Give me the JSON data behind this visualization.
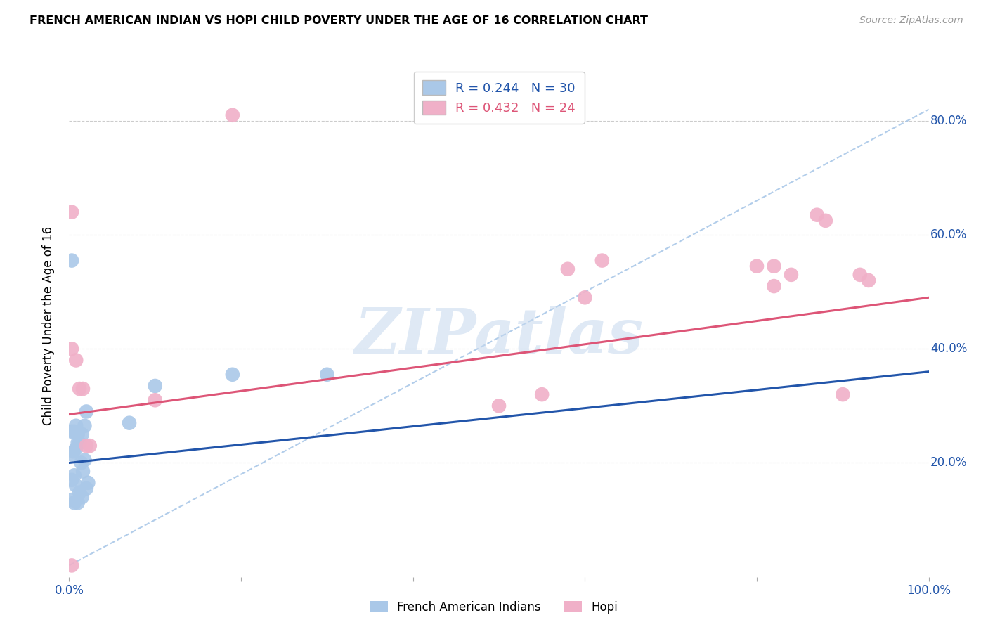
{
  "title": "FRENCH AMERICAN INDIAN VS HOPI CHILD POVERTY UNDER THE AGE OF 16 CORRELATION CHART",
  "source": "Source: ZipAtlas.com",
  "ylabel": "Child Poverty Under the Age of 16",
  "xlim": [
    0.0,
    1.0
  ],
  "ylim": [
    0.0,
    0.88
  ],
  "xticks": [
    0.0,
    0.2,
    0.4,
    0.6,
    0.8,
    1.0
  ],
  "xtick_labels": [
    "0.0%",
    "",
    "",
    "",
    "",
    "100.0%"
  ],
  "ytick_vals": [
    0.2,
    0.4,
    0.6,
    0.8
  ],
  "ytick_labels": [
    "20.0%",
    "40.0%",
    "60.0%",
    "80.0%"
  ],
  "blue_label": "French American Indians",
  "pink_label": "Hopi",
  "blue_R": "0.244",
  "blue_N": "30",
  "pink_R": "0.432",
  "pink_N": "24",
  "blue_color": "#aac8e8",
  "pink_color": "#f0b0c8",
  "blue_line_color": "#2255aa",
  "pink_line_color": "#dd5577",
  "dashed_line_color": "#aac8e8",
  "watermark": "ZIPatlas",
  "blue_x": [
    0.003,
    0.006,
    0.008,
    0.01,
    0.012,
    0.015,
    0.018,
    0.02,
    0.003,
    0.005,
    0.008,
    0.01,
    0.014,
    0.016,
    0.018,
    0.003,
    0.006,
    0.008,
    0.012,
    0.015,
    0.02,
    0.022,
    0.003,
    0.006,
    0.01,
    0.07,
    0.1,
    0.19,
    0.3,
    0.003
  ],
  "blue_y": [
    0.255,
    0.255,
    0.265,
    0.25,
    0.235,
    0.25,
    0.265,
    0.29,
    0.215,
    0.22,
    0.225,
    0.235,
    0.2,
    0.185,
    0.205,
    0.17,
    0.178,
    0.16,
    0.148,
    0.14,
    0.155,
    0.165,
    0.135,
    0.13,
    0.13,
    0.27,
    0.335,
    0.355,
    0.355,
    0.555
  ],
  "pink_x": [
    0.003,
    0.003,
    0.003,
    0.008,
    0.012,
    0.016,
    0.02,
    0.024,
    0.1,
    0.19,
    0.58,
    0.6,
    0.62,
    0.8,
    0.82,
    0.87,
    0.88,
    0.9,
    0.92,
    0.93,
    0.5,
    0.55,
    0.82,
    0.84
  ],
  "pink_y": [
    0.4,
    0.64,
    0.02,
    0.38,
    0.33,
    0.33,
    0.23,
    0.23,
    0.31,
    0.81,
    0.54,
    0.49,
    0.555,
    0.545,
    0.545,
    0.635,
    0.625,
    0.32,
    0.53,
    0.52,
    0.3,
    0.32,
    0.51,
    0.53
  ],
  "blue_trend_x": [
    0.0,
    1.0
  ],
  "blue_trend_y": [
    0.2,
    0.36
  ],
  "pink_trend_x": [
    0.0,
    1.0
  ],
  "pink_trend_y": [
    0.285,
    0.49
  ],
  "diag_trend_x": [
    0.0,
    1.0
  ],
  "diag_trend_y": [
    0.02,
    0.82
  ]
}
